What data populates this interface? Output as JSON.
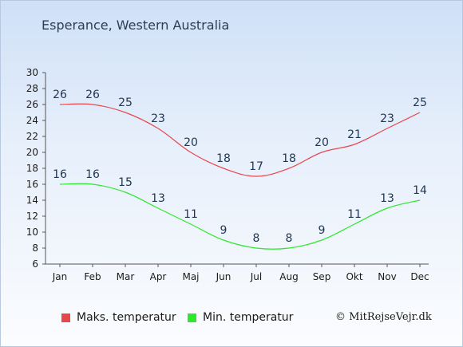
{
  "chart_data": {
    "type": "line",
    "title": "Esperance, Western Australia",
    "categories": [
      "Jan",
      "Feb",
      "Mar",
      "Apr",
      "Maj",
      "Jun",
      "Jul",
      "Aug",
      "Sep",
      "Okt",
      "Nov",
      "Dec"
    ],
    "series": [
      {
        "name": "Maks. temperatur",
        "color": "#e8474c",
        "values": [
          26,
          26,
          25,
          23,
          20,
          18,
          17,
          18,
          20,
          21,
          23,
          25
        ]
      },
      {
        "name": "Min. temperatur",
        "color": "#2ee82e",
        "values": [
          16,
          16,
          15,
          13,
          11,
          9,
          8,
          8,
          9,
          11,
          13,
          14
        ]
      }
    ],
    "ylim": [
      6,
      30
    ],
    "yticks": [
      6,
      8,
      10,
      12,
      14,
      16,
      18,
      20,
      22,
      24,
      26,
      28,
      30
    ],
    "grid": false,
    "legend": "bottom"
  },
  "credit": "© MitRejseVejr.dk"
}
